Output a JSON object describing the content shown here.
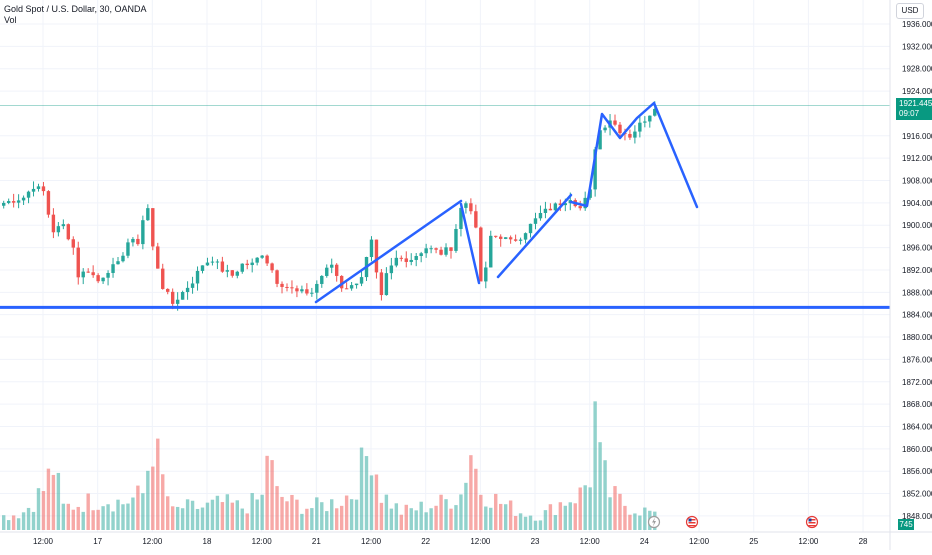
{
  "header": {
    "title": "Gold Spot / U.S. Dollar, 30, OANDA",
    "volume_label": "Vol"
  },
  "currency_label": "USD",
  "price_label": {
    "price": "1921.445",
    "countdown": "09:07"
  },
  "volume_badge": "745",
  "colors": {
    "up": "#26a69a",
    "down": "#ef5350",
    "drawing": "#2962ff",
    "price_line": "#089981"
  },
  "chart_data": {
    "type": "candlestick",
    "symbol": "XAUUSD",
    "timeframe": "30",
    "y_axis": {
      "min": 1846,
      "max": 1937,
      "ticks": [
        "1936.000",
        "1932.000",
        "1928.000",
        "1924.000",
        "1916.000",
        "1912.000",
        "1908.000",
        "1904.000",
        "1900.000",
        "1896.000",
        "1892.000",
        "1888.000",
        "1884.000",
        "1880.000",
        "1876.000",
        "1872.000",
        "1868.000",
        "1864.000",
        "1860.000",
        "1856.000",
        "1852.000",
        "1848.000"
      ]
    },
    "x_axis": {
      "ticks": [
        "12:00",
        "17",
        "12:00",
        "18",
        "12:00",
        "21",
        "12:00",
        "22",
        "12:00",
        "23",
        "12:00",
        "24",
        "12:00",
        "25",
        "12:00",
        "28"
      ]
    },
    "last_price": 1921.445,
    "support_level": 1885.3,
    "price_path": [
      [
        0,
        1904
      ],
      [
        4,
        1905
      ],
      [
        6,
        1907
      ],
      [
        8,
        1906
      ],
      [
        9,
        1902
      ],
      [
        10,
        1899
      ],
      [
        12,
        1900
      ],
      [
        14,
        1896
      ],
      [
        15,
        1891
      ],
      [
        17,
        1892
      ],
      [
        19,
        1890
      ],
      [
        21,
        1892
      ],
      [
        23,
        1893
      ],
      [
        25,
        1897
      ],
      [
        27,
        1897
      ],
      [
        28,
        1901
      ],
      [
        29,
        1903
      ],
      [
        30,
        1896
      ],
      [
        32,
        1889
      ],
      [
        34,
        1886
      ],
      [
        36,
        1888
      ],
      [
        38,
        1890
      ],
      [
        40,
        1893
      ],
      [
        42,
        1894
      ],
      [
        44,
        1892
      ],
      [
        46,
        1891
      ],
      [
        48,
        1893
      ],
      [
        50,
        1893
      ],
      [
        52,
        1895
      ],
      [
        54,
        1892
      ],
      [
        55,
        1890
      ],
      [
        57,
        1889
      ],
      [
        59,
        1888
      ],
      [
        62,
        1888
      ],
      [
        64,
        1891
      ],
      [
        66,
        1893
      ],
      [
        68,
        1889
      ],
      [
        70,
        1889
      ],
      [
        72,
        1891
      ],
      [
        74,
        1897
      ],
      [
        75,
        1891
      ],
      [
        76,
        1887
      ],
      [
        77,
        1891
      ],
      [
        79,
        1894
      ],
      [
        82,
        1894
      ],
      [
        85,
        1896
      ],
      [
        88,
        1895
      ],
      [
        90,
        1896
      ],
      [
        92,
        1903
      ],
      [
        93,
        1904
      ],
      [
        94,
        1903
      ],
      [
        95,
        1899
      ],
      [
        96,
        1890
      ],
      [
        97,
        1892
      ],
      [
        98,
        1898
      ],
      [
        100,
        1898
      ],
      [
        102,
        1897
      ],
      [
        104,
        1898
      ],
      [
        106,
        1900
      ],
      [
        108,
        1902
      ],
      [
        110,
        1903
      ],
      [
        112,
        1904
      ],
      [
        114,
        1905
      ],
      [
        116,
        1903
      ],
      [
        118,
        1906
      ],
      [
        119,
        1914
      ],
      [
        120,
        1917
      ],
      [
        122,
        1919
      ],
      [
        124,
        1917
      ],
      [
        126,
        1916
      ],
      [
        128,
        1918
      ],
      [
        130,
        1920
      ],
      [
        131,
        1921.4
      ]
    ],
    "volume_path": [
      [
        0,
        15
      ],
      [
        4,
        20
      ],
      [
        8,
        45
      ],
      [
        10,
        70
      ],
      [
        12,
        25
      ],
      [
        16,
        30
      ],
      [
        20,
        35
      ],
      [
        24,
        30
      ],
      [
        28,
        40
      ],
      [
        30,
        100
      ],
      [
        32,
        55
      ],
      [
        34,
        20
      ],
      [
        36,
        25
      ],
      [
        40,
        25
      ],
      [
        44,
        30
      ],
      [
        48,
        25
      ],
      [
        52,
        35
      ],
      [
        53,
        90
      ],
      [
        55,
        40
      ],
      [
        58,
        30
      ],
      [
        62,
        25
      ],
      [
        66,
        30
      ],
      [
        70,
        40
      ],
      [
        74,
        95
      ],
      [
        76,
        40
      ],
      [
        80,
        20
      ],
      [
        84,
        25
      ],
      [
        88,
        30
      ],
      [
        92,
        40
      ],
      [
        94,
        90
      ],
      [
        96,
        45
      ],
      [
        100,
        30
      ],
      [
        104,
        20
      ],
      [
        108,
        15
      ],
      [
        112,
        30
      ],
      [
        116,
        40
      ],
      [
        118,
        60
      ],
      [
        119,
        130
      ],
      [
        120,
        75
      ],
      [
        122,
        40
      ],
      [
        126,
        25
      ],
      [
        130,
        20
      ],
      [
        131,
        15
      ]
    ],
    "volume_max": 135,
    "drawings": [
      {
        "type": "trendline",
        "points": [
          [
            316,
            302
          ],
          [
            461,
            201
          ]
        ]
      },
      {
        "type": "polyline",
        "points": [
          [
            461,
            204
          ],
          [
            479,
            283
          ]
        ]
      },
      {
        "type": "trendline",
        "points": [
          [
            498,
            277
          ],
          [
            571,
            195
          ]
        ]
      },
      {
        "type": "polyline",
        "points": [
          [
            571,
            202
          ],
          [
            587,
            206
          ],
          [
            602,
            114
          ],
          [
            620,
            138
          ],
          [
            637,
            118
          ],
          [
            654,
            103
          ],
          [
            697,
            207
          ]
        ]
      },
      {
        "type": "horizontal",
        "y_price": 1885.3
      }
    ],
    "events": [
      {
        "label": "flash"
      },
      {
        "label": "us-flag"
      },
      {
        "label": "us-flag"
      }
    ]
  }
}
